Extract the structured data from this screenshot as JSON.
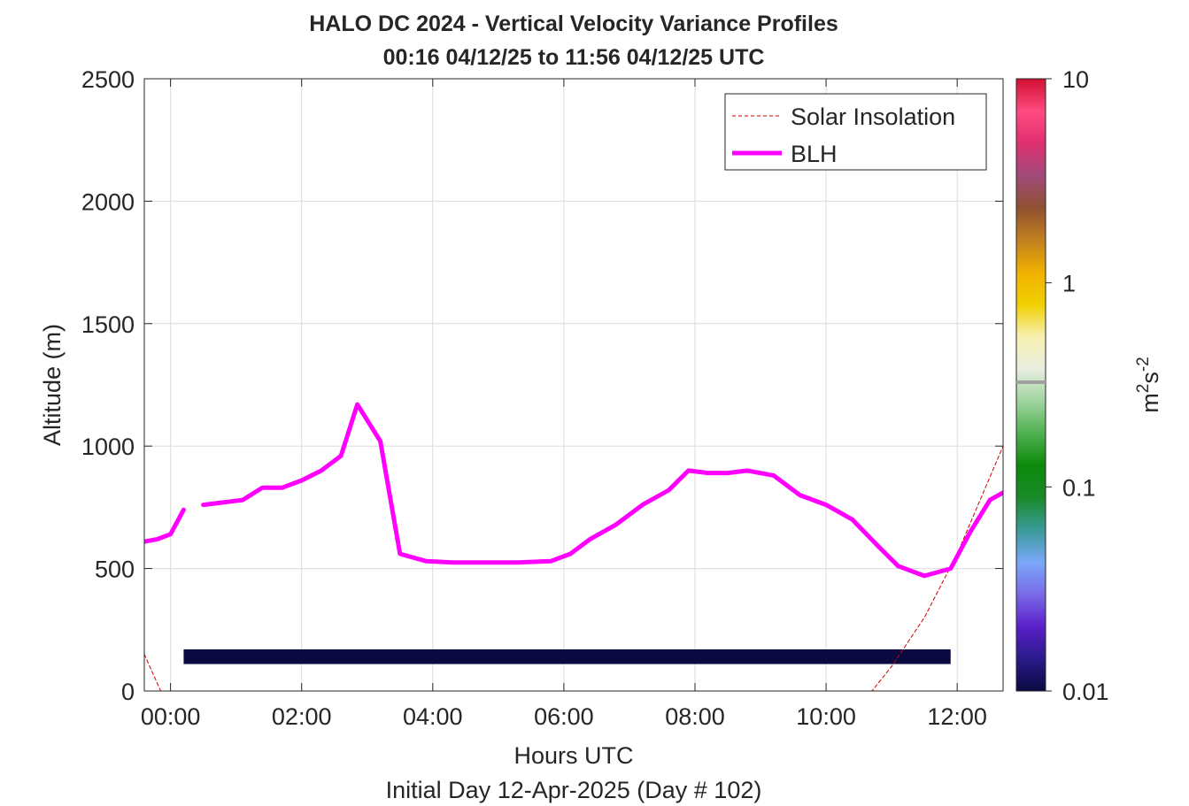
{
  "chart_data": {
    "type": "heatmap",
    "title": "HALO DC 2024 - Vertical Velocity Variance Profiles",
    "subtitle": "00:16 04/12/25 to 11:56 04/12/25  UTC",
    "xlabel": "Hours UTC",
    "xlabel2": "Initial Day 12-Apr-2025 (Day # 102)",
    "ylabel": "Altitude (m)",
    "xlim": [
      -0.4,
      12.7
    ],
    "ylim": [
      0,
      2500
    ],
    "x_ticks": [
      {
        "value": 0,
        "label": "00:00"
      },
      {
        "value": 2,
        "label": "02:00"
      },
      {
        "value": 4,
        "label": "04:00"
      },
      {
        "value": 6,
        "label": "06:00"
      },
      {
        "value": 8,
        "label": "08:00"
      },
      {
        "value": 10,
        "label": "10:00"
      },
      {
        "value": 12,
        "label": "12:00"
      }
    ],
    "y_ticks": [
      {
        "value": 0,
        "label": "0"
      },
      {
        "value": 500,
        "label": "500"
      },
      {
        "value": 1000,
        "label": "1000"
      },
      {
        "value": 1500,
        "label": "1500"
      },
      {
        "value": 2000,
        "label": "2000"
      },
      {
        "value": 2500,
        "label": "2500"
      }
    ],
    "grid": true,
    "legend_position": "top-right",
    "colorbar": {
      "label": "m2s-2",
      "label_text": {
        "base": "m",
        "sup1": "2",
        "mid": "s",
        "sup2": "-2"
      },
      "scale": "log",
      "range": [
        0.01,
        10
      ],
      "ticks": [
        {
          "value": 0.01,
          "label": "0.01"
        },
        {
          "value": 0.1,
          "label": "0.1"
        },
        {
          "value": 1,
          "label": "1"
        },
        {
          "value": 10,
          "label": "10"
        }
      ],
      "colors": [
        "#0a0a40",
        "#2a1a8a",
        "#5a20c8",
        "#7a6ae8",
        "#7aa8f8",
        "#3a9a9a",
        "#1a8a2a",
        "#0a8a0a",
        "#50b050",
        "#a0d4a0",
        "#e8eee0",
        "#f8f0b0",
        "#f0d000",
        "#f0b000",
        "#c08020",
        "#905030",
        "#a04a7a",
        "#e03070",
        "#ff4a80",
        "#d01030"
      ]
    },
    "series": [
      {
        "name": "Solar Insolation",
        "style": "dashed",
        "color": "#cc0000",
        "x": [
          -0.4,
          -0.15,
          10.7,
          11.0,
          11.5,
          12.0,
          12.7
        ],
        "y": [
          150,
          0,
          0,
          100,
          300,
          560,
          1000
        ]
      },
      {
        "name": "BLH",
        "style": "solid",
        "color": "#ff00ff",
        "segments": [
          {
            "x": [
              -0.4,
              -0.2,
              0.0,
              0.2
            ],
            "y": [
              610,
              620,
              640,
              740
            ]
          },
          {
            "x": [
              0.5,
              0.8,
              1.1,
              1.4,
              1.7,
              2.0,
              2.3,
              2.6,
              2.85,
              3.2,
              3.5,
              3.9,
              4.3,
              4.8,
              5.3,
              5.8,
              6.1,
              6.4,
              6.8,
              7.2,
              7.6,
              7.9,
              8.2,
              8.5,
              8.8,
              9.2,
              9.6,
              10.0,
              10.4,
              10.8,
              11.1,
              11.5,
              11.9,
              12.2,
              12.5,
              12.7
            ],
            "y": [
              760,
              770,
              780,
              830,
              830,
              860,
              900,
              960,
              1170,
              1020,
              560,
              530,
              525,
              525,
              525,
              530,
              560,
              620,
              680,
              760,
              820,
              900,
              890,
              890,
              900,
              880,
              800,
              760,
              700,
              590,
              510,
              470,
              500,
              650,
              780,
              810
            ]
          }
        ]
      }
    ],
    "heatmap_layers": [
      {
        "x_range": [
          0.2,
          11.9
        ],
        "y": [
          110,
          170
        ],
        "value": 0.01
      }
    ]
  }
}
